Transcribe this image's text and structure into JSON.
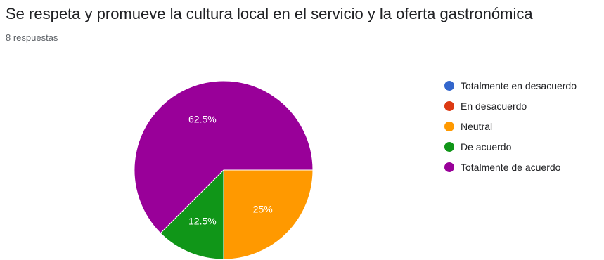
{
  "header": {
    "title": "Se respeta y promueve la cultura local en el servicio y la oferta gastronómica",
    "response_count": "8 respuestas"
  },
  "chart_data": {
    "type": "pie",
    "title": "Se respeta y promueve la cultura local en el servicio y la oferta gastronómica",
    "slices": [
      {
        "label": "Totalmente en desacuerdo",
        "value": 0,
        "color": "#3366cc",
        "data_label": ""
      },
      {
        "label": "En desacuerdo",
        "value": 0,
        "color": "#dc3912",
        "data_label": ""
      },
      {
        "label": "Neutral",
        "value": 25,
        "color": "#ff9900",
        "data_label": "25%"
      },
      {
        "label": "De acuerdo",
        "value": 12.5,
        "color": "#109618",
        "data_label": "12.5%"
      },
      {
        "label": "Totalmente de acuerdo",
        "value": 62.5,
        "color": "#990099",
        "data_label": "62.5%"
      }
    ],
    "legend_position": "right"
  }
}
